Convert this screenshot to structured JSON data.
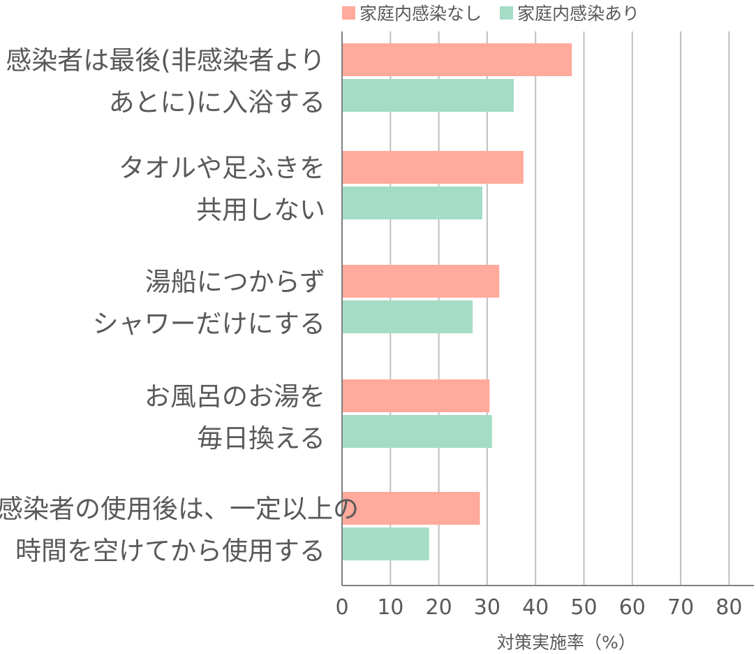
{
  "chart_data": {
    "type": "bar",
    "orientation": "horizontal",
    "categories": [
      {
        "line1": "感染者は最後(非感染者より",
        "line2": "あとに)に入浴する"
      },
      {
        "line1": "タオルや足ふきを",
        "line2": "共用しない"
      },
      {
        "line1": "湯船につからず",
        "line2": "シャワーだけにする"
      },
      {
        "line1": "お風呂のお湯を",
        "line2": "毎日換える"
      },
      {
        "line1": "感染者の使用後は、一定以上の",
        "line2": "時間を空けてから使用する"
      }
    ],
    "series": [
      {
        "name": "家庭内感染なし",
        "color": "#FFAA9C",
        "values": [
          47.5,
          37.5,
          32.5,
          30.5,
          28.5
        ]
      },
      {
        "name": "家庭内感染あり",
        "color": "#A5DCC5",
        "values": [
          35.5,
          29,
          27,
          31,
          18
        ]
      }
    ],
    "xlim": [
      0,
      85
    ],
    "xticks": [
      "0",
      "10",
      "20",
      "30",
      "40",
      "50",
      "60",
      "70",
      "80"
    ],
    "xlabel": "対策実施率（%）",
    "grid": true,
    "legend_position": "top"
  }
}
